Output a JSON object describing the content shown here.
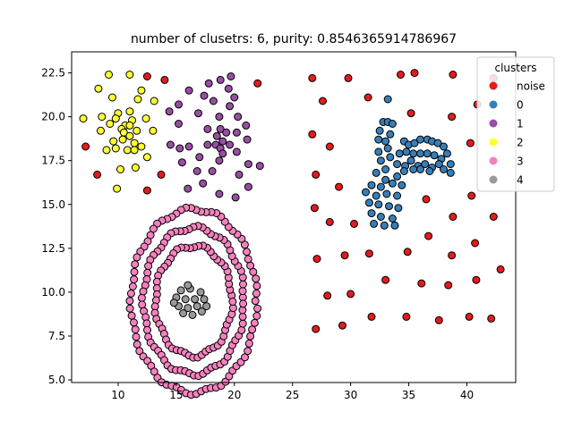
{
  "chart_data": {
    "type": "scatter",
    "title": "number of clusetrs: 6, purity: 0.8546365914786967",
    "xlabel": "",
    "ylabel": "",
    "xlim": [
      6.0,
      44.2
    ],
    "ylim": [
      4.85,
      23.7
    ],
    "xticks": [
      10,
      15,
      20,
      25,
      30,
      35,
      40
    ],
    "yticks": [
      5.0,
      7.5,
      10.0,
      12.5,
      15.0,
      17.5,
      20.0,
      22.5
    ],
    "ytick_labels": [
      "5.0",
      "7.5",
      "10.0",
      "12.5",
      "15.0",
      "17.5",
      "20.0",
      "22.5"
    ],
    "grid": false,
    "legend": {
      "title": "clusters",
      "placement": "top-right",
      "entries": [
        {
          "label": "noise",
          "color": "#e41a1c"
        },
        {
          "label": "0",
          "color": "#377eb8"
        },
        {
          "label": "1",
          "color": "#984ea3"
        },
        {
          "label": "2",
          "color": "#ffff33"
        },
        {
          "label": "3",
          "color": "#f781bf"
        },
        {
          "label": "4",
          "color": "#999999"
        }
      ]
    },
    "series": [
      {
        "name": "noise",
        "color": "#e41a1c",
        "points": [
          [
            7.2,
            18.3
          ],
          [
            8.2,
            16.7
          ],
          [
            12.5,
            22.3
          ],
          [
            14.0,
            22.1
          ],
          [
            13.7,
            16.7
          ],
          [
            12.5,
            15.8
          ],
          [
            22.0,
            21.9
          ],
          [
            26.7,
            22.2
          ],
          [
            27.6,
            20.9
          ],
          [
            29.8,
            22.2
          ],
          [
            31.5,
            21.1
          ],
          [
            34.3,
            22.4
          ],
          [
            35.5,
            22.5
          ],
          [
            38.8,
            22.4
          ],
          [
            40.9,
            20.7
          ],
          [
            42.3,
            22.2
          ],
          [
            26.7,
            19.0
          ],
          [
            28.2,
            18.3
          ],
          [
            35.2,
            20.2
          ],
          [
            38.7,
            20.0
          ],
          [
            40.3,
            18.5
          ],
          [
            27.0,
            16.7
          ],
          [
            29.0,
            16.0
          ],
          [
            30.3,
            13.9
          ],
          [
            36.5,
            15.3
          ],
          [
            40.4,
            15.5
          ],
          [
            26.9,
            14.8
          ],
          [
            28.2,
            14.0
          ],
          [
            38.8,
            14.3
          ],
          [
            42.3,
            14.3
          ],
          [
            36.7,
            13.2
          ],
          [
            40.7,
            12.8
          ],
          [
            27.1,
            11.9
          ],
          [
            29.5,
            12.1
          ],
          [
            31.6,
            12.2
          ],
          [
            34.9,
            12.3
          ],
          [
            38.7,
            12.1
          ],
          [
            42.9,
            11.3
          ],
          [
            28.0,
            9.8
          ],
          [
            30.0,
            9.9
          ],
          [
            33.0,
            10.7
          ],
          [
            36.1,
            10.5
          ],
          [
            38.4,
            10.4
          ],
          [
            40.8,
            10.7
          ],
          [
            27.0,
            7.9
          ],
          [
            29.3,
            8.1
          ],
          [
            31.8,
            8.6
          ],
          [
            34.8,
            8.6
          ],
          [
            37.6,
            8.4
          ],
          [
            40.2,
            8.6
          ],
          [
            42.1,
            8.5
          ]
        ]
      },
      {
        "name": "0",
        "color": "#377eb8",
        "points": [
          [
            33.2,
            21.0
          ],
          [
            32.8,
            19.7
          ],
          [
            33.2,
            19.7
          ],
          [
            33.6,
            19.6
          ],
          [
            32.5,
            19.2
          ],
          [
            33.4,
            19.0
          ],
          [
            32.4,
            18.7
          ],
          [
            33.0,
            18.6
          ],
          [
            32.4,
            18.0
          ],
          [
            33.2,
            18.2
          ],
          [
            34.6,
            18.6
          ],
          [
            35.0,
            18.4
          ],
          [
            35.5,
            18.5
          ],
          [
            36.0,
            18.7
          ],
          [
            36.6,
            18.7
          ],
          [
            37.0,
            18.6
          ],
          [
            37.5,
            18.5
          ],
          [
            38.0,
            18.3
          ],
          [
            32.6,
            17.5
          ],
          [
            33.4,
            17.7
          ],
          [
            34.2,
            17.9
          ],
          [
            34.8,
            18.0
          ],
          [
            35.4,
            17.9
          ],
          [
            36.0,
            17.9
          ],
          [
            36.6,
            17.9
          ],
          [
            37.2,
            17.8
          ],
          [
            37.8,
            17.6
          ],
          [
            38.3,
            17.9
          ],
          [
            38.6,
            17.3
          ],
          [
            33.0,
            17.0
          ],
          [
            34.0,
            17.3
          ],
          [
            34.7,
            17.2
          ],
          [
            35.2,
            17.5
          ],
          [
            35.8,
            17.2
          ],
          [
            36.4,
            17.3
          ],
          [
            37.0,
            17.1
          ],
          [
            37.6,
            17.3
          ],
          [
            38.0,
            17.0
          ],
          [
            38.6,
            16.8
          ],
          [
            32.2,
            16.8
          ],
          [
            33.0,
            16.4
          ],
          [
            34.0,
            16.6
          ],
          [
            34.6,
            16.9
          ],
          [
            35.4,
            17.0
          ],
          [
            36.0,
            17.0
          ],
          [
            36.8,
            16.9
          ],
          [
            31.8,
            16.1
          ],
          [
            32.6,
            16.0
          ],
          [
            33.6,
            16.2
          ],
          [
            34.4,
            16.1
          ],
          [
            31.3,
            15.7
          ],
          [
            32.2,
            15.5
          ],
          [
            33.1,
            15.6
          ],
          [
            34.0,
            15.5
          ],
          [
            31.6,
            15.1
          ],
          [
            32.4,
            15.0
          ],
          [
            33.3,
            14.9
          ],
          [
            34.1,
            14.8
          ],
          [
            31.8,
            14.5
          ],
          [
            32.6,
            14.3
          ],
          [
            33.6,
            14.2
          ],
          [
            32.0,
            13.9
          ],
          [
            32.9,
            13.8
          ],
          [
            33.8,
            13.8
          ]
        ]
      },
      {
        "name": "1",
        "color": "#984ea3",
        "points": [
          [
            16.1,
            21.5
          ],
          [
            17.4,
            21.2
          ],
          [
            17.8,
            21.9
          ],
          [
            18.8,
            22.1
          ],
          [
            19.7,
            22.3
          ],
          [
            19.5,
            21.6
          ],
          [
            20.0,
            21.1
          ],
          [
            18.2,
            20.9
          ],
          [
            15.2,
            20.7
          ],
          [
            16.9,
            20.2
          ],
          [
            18.7,
            20.0
          ],
          [
            19.6,
            20.6
          ],
          [
            20.3,
            20.0
          ],
          [
            15.2,
            19.6
          ],
          [
            14.4,
            20.3
          ],
          [
            17.7,
            19.3
          ],
          [
            18.8,
            19.3
          ],
          [
            19.3,
            19.1
          ],
          [
            20.2,
            19.1
          ],
          [
            21.0,
            19.5
          ],
          [
            18.5,
            18.9
          ],
          [
            19.0,
            18.6
          ],
          [
            18.4,
            18.4
          ],
          [
            18.8,
            18.2
          ],
          [
            19.6,
            18.4
          ],
          [
            21.1,
            18.7
          ],
          [
            16.1,
            18.3
          ],
          [
            17.7,
            18.4
          ],
          [
            14.5,
            18.4
          ],
          [
            20.2,
            18.0
          ],
          [
            19.0,
            17.9
          ],
          [
            17.0,
            17.7
          ],
          [
            18.7,
            17.5
          ],
          [
            15.5,
            17.4
          ],
          [
            21.2,
            17.3
          ],
          [
            16.8,
            16.9
          ],
          [
            18.1,
            16.9
          ],
          [
            20.4,
            16.7
          ],
          [
            22.2,
            17.2
          ],
          [
            17.3,
            16.2
          ],
          [
            16.0,
            15.9
          ],
          [
            18.7,
            15.6
          ],
          [
            20.1,
            15.4
          ],
          [
            21.2,
            16.0
          ],
          [
            15.3,
            18.2
          ]
        ]
      },
      {
        "name": "2",
        "color": "#ffff33",
        "points": [
          [
            9.2,
            22.4
          ],
          [
            11.0,
            22.4
          ],
          [
            8.3,
            21.6
          ],
          [
            12.0,
            21.5
          ],
          [
            9.5,
            21.1
          ],
          [
            11.7,
            21.0
          ],
          [
            13.1,
            20.9
          ],
          [
            10.0,
            20.2
          ],
          [
            11.0,
            20.3
          ],
          [
            8.6,
            20.0
          ],
          [
            7.0,
            19.9
          ],
          [
            9.8,
            19.9
          ],
          [
            11.2,
            19.8
          ],
          [
            12.4,
            19.9
          ],
          [
            10.6,
            19.5
          ],
          [
            10.3,
            19.3
          ],
          [
            11.0,
            19.5
          ],
          [
            9.3,
            19.6
          ],
          [
            11.6,
            19.2
          ],
          [
            8.5,
            19.2
          ],
          [
            10.5,
            19.1
          ],
          [
            11.0,
            18.9
          ],
          [
            10.4,
            18.7
          ],
          [
            13.0,
            19.2
          ],
          [
            9.6,
            18.6
          ],
          [
            11.4,
            18.5
          ],
          [
            9.8,
            18.2
          ],
          [
            10.8,
            18.1
          ],
          [
            11.4,
            18.1
          ],
          [
            12.0,
            18.3
          ],
          [
            9.0,
            18.1
          ],
          [
            12.5,
            17.7
          ],
          [
            11.5,
            17.1
          ],
          [
            10.2,
            17.0
          ],
          [
            9.9,
            15.9
          ]
        ]
      },
      {
        "name": "4",
        "color": "#999999",
        "points": [
          [
            15.4,
            10.1
          ],
          [
            16.2,
            10.2
          ],
          [
            17.1,
            10.0
          ],
          [
            15.0,
            9.7
          ],
          [
            15.8,
            9.6
          ],
          [
            16.6,
            9.6
          ],
          [
            17.4,
            9.6
          ],
          [
            15.2,
            9.2
          ],
          [
            16.0,
            9.1
          ],
          [
            16.8,
            9.2
          ],
          [
            15.6,
            8.8
          ],
          [
            16.4,
            8.7
          ],
          [
            17.2,
            8.9
          ],
          [
            17.6,
            9.2
          ],
          [
            14.8,
            9.4
          ],
          [
            16.0,
            10.4
          ]
        ]
      }
    ],
    "ring_series": {
      "name": "3",
      "color": "#f781bf",
      "center": [
        16.5,
        9.5
      ],
      "inner_radius": 3.3,
      "outer_radius": 5.4,
      "y_scale_inner": 0.95,
      "y_scale_outer": 0.97,
      "n_inner": 56,
      "n_outer": 78,
      "n_middle": 70
    }
  }
}
